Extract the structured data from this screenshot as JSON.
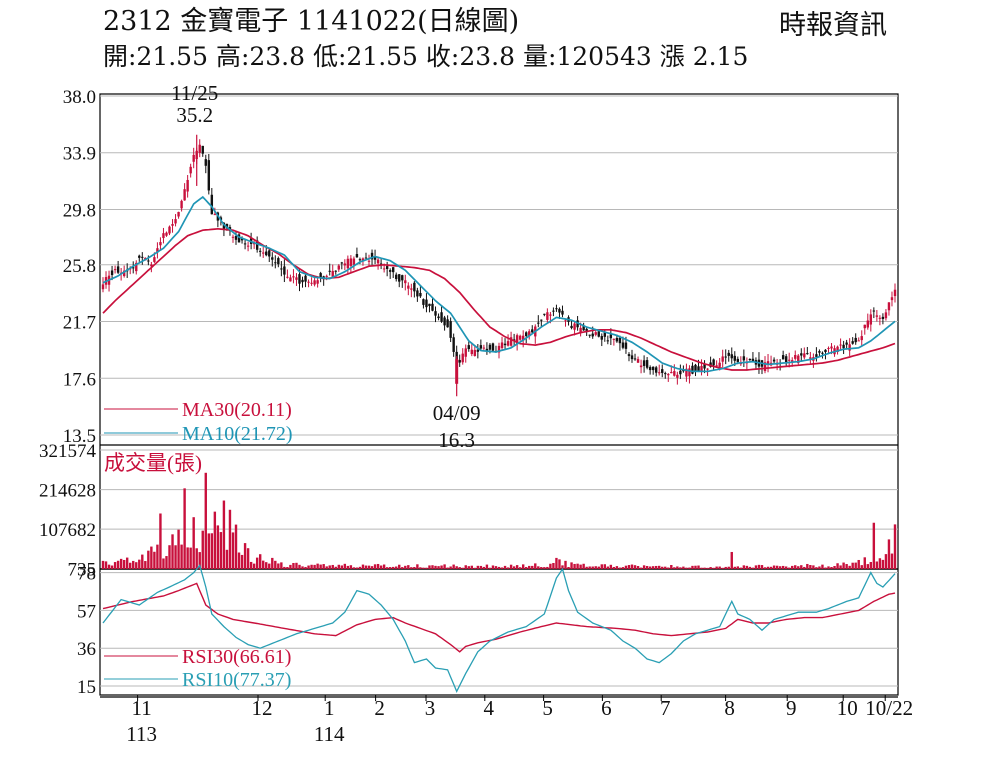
{
  "header": {
    "title": "2312  金寶電子 1141022(日線圖)",
    "ohlc": "開:21.55 高:23.8 低:21.55 收:23.8 量:120543 漲 2.15",
    "source": "時報資訊"
  },
  "colors": {
    "up": "#c8103c",
    "down": "#111111",
    "ma30": "#c8103c",
    "ma10": "#1f95b5",
    "rsi30": "#c8103c",
    "rsi10": "#2a9fb4",
    "volume": "#c8103c",
    "grid": "#b8b8b8",
    "axis": "#000000"
  },
  "chart_data": [
    {
      "type": "candlestick",
      "ylim": [
        13.5,
        38.0
      ],
      "y_ticks": [
        "38.0",
        "33.9",
        "29.8",
        "25.8",
        "21.7",
        "17.6",
        "13.5"
      ],
      "y_tick_values": [
        38.0,
        33.9,
        29.8,
        25.8,
        21.7,
        17.6,
        13.5
      ],
      "grid": true,
      "annotations": [
        {
          "date": "11/25",
          "value": "35.2",
          "label_date": "11/25",
          "label_value": "35.2"
        },
        {
          "date": "04/09",
          "value": "16.3",
          "label_date": "04/09",
          "label_value": "16.3"
        }
      ],
      "legend": [
        {
          "name": "MA30(20.11)",
          "color_key": "ma30"
        },
        {
          "name": "MA10(21.72)",
          "color_key": "ma10"
        }
      ],
      "ma30_anchors": [
        [
          0,
          22.3
        ],
        [
          4,
          23.2
        ],
        [
          8,
          24.0
        ],
        [
          12,
          24.8
        ],
        [
          16,
          25.6
        ],
        [
          20,
          26.4
        ],
        [
          24,
          27.2
        ],
        [
          28,
          27.9
        ],
        [
          33,
          28.3
        ],
        [
          38,
          28.4
        ],
        [
          43,
          28.3
        ],
        [
          48,
          27.9
        ],
        [
          53,
          27.2
        ],
        [
          58,
          26.6
        ],
        [
          63,
          25.8
        ],
        [
          68,
          25.1
        ],
        [
          73,
          24.8
        ],
        [
          78,
          24.9
        ],
        [
          83,
          25.3
        ],
        [
          88,
          25.7
        ],
        [
          93,
          25.8
        ],
        [
          98,
          25.7
        ],
        [
          103,
          25.6
        ],
        [
          108,
          25.4
        ],
        [
          113,
          24.8
        ],
        [
          118,
          23.8
        ],
        [
          123,
          22.5
        ],
        [
          128,
          21.3
        ],
        [
          133,
          20.6
        ],
        [
          138,
          20.1
        ],
        [
          143,
          20.0
        ],
        [
          148,
          20.2
        ],
        [
          153,
          20.6
        ],
        [
          158,
          20.9
        ],
        [
          163,
          21.1
        ],
        [
          168,
          21.1
        ],
        [
          173,
          20.9
        ],
        [
          178,
          20.5
        ],
        [
          183,
          20.0
        ],
        [
          188,
          19.5
        ],
        [
          193,
          19.1
        ],
        [
          198,
          18.7
        ],
        [
          203,
          18.4
        ],
        [
          208,
          18.2
        ],
        [
          213,
          18.2
        ],
        [
          218,
          18.3
        ],
        [
          223,
          18.4
        ],
        [
          228,
          18.5
        ],
        [
          233,
          18.6
        ],
        [
          238,
          18.7
        ],
        [
          243,
          18.9
        ],
        [
          248,
          19.2
        ],
        [
          253,
          19.5
        ],
        [
          258,
          19.8
        ],
        [
          262,
          20.11
        ]
      ],
      "ma10_anchors": [
        [
          0,
          24.5
        ],
        [
          5,
          25.0
        ],
        [
          10,
          25.7
        ],
        [
          15,
          26.3
        ],
        [
          20,
          27.0
        ],
        [
          25,
          28.2
        ],
        [
          30,
          30.2
        ],
        [
          33,
          30.7
        ],
        [
          36,
          30.0
        ],
        [
          40,
          28.7
        ],
        [
          45,
          27.8
        ],
        [
          50,
          27.4
        ],
        [
          55,
          27.0
        ],
        [
          60,
          26.5
        ],
        [
          65,
          25.3
        ],
        [
          70,
          24.9
        ],
        [
          75,
          24.8
        ],
        [
          80,
          25.3
        ],
        [
          85,
          26.0
        ],
        [
          90,
          26.4
        ],
        [
          95,
          26.1
        ],
        [
          100,
          25.4
        ],
        [
          105,
          24.3
        ],
        [
          110,
          23.2
        ],
        [
          115,
          22.3
        ],
        [
          118,
          21.3
        ],
        [
          121,
          20.3
        ],
        [
          125,
          19.6
        ],
        [
          130,
          19.5
        ],
        [
          135,
          19.8
        ],
        [
          140,
          20.5
        ],
        [
          145,
          21.3
        ],
        [
          150,
          22.0
        ],
        [
          155,
          21.8
        ],
        [
          160,
          21.3
        ],
        [
          165,
          21.0
        ],
        [
          170,
          20.7
        ],
        [
          175,
          20.2
        ],
        [
          180,
          19.5
        ],
        [
          185,
          18.7
        ],
        [
          190,
          18.3
        ],
        [
          195,
          18.1
        ],
        [
          200,
          18.1
        ],
        [
          205,
          18.3
        ],
        [
          210,
          18.7
        ],
        [
          215,
          18.8
        ],
        [
          220,
          18.6
        ],
        [
          225,
          18.7
        ],
        [
          230,
          18.8
        ],
        [
          235,
          19.0
        ],
        [
          240,
          19.4
        ],
        [
          245,
          19.7
        ],
        [
          250,
          19.8
        ],
        [
          254,
          20.3
        ],
        [
          258,
          21.0
        ],
        [
          262,
          21.72
        ]
      ],
      "price_anchors": [
        [
          0,
          24.6
        ],
        [
          4,
          25.4
        ],
        [
          8,
          25.2
        ],
        [
          12,
          26.3
        ],
        [
          16,
          26.0
        ],
        [
          20,
          27.9
        ],
        [
          24,
          29.0
        ],
        [
          27,
          31.2
        ],
        [
          30,
          33.8
        ],
        [
          32,
          34.6
        ],
        [
          34,
          33.0
        ],
        [
          36,
          29.5
        ],
        [
          40,
          28.6
        ],
        [
          45,
          27.6
        ],
        [
          50,
          27.2
        ],
        [
          54,
          26.6
        ],
        [
          58,
          25.8
        ],
        [
          62,
          24.8
        ],
        [
          66,
          24.6
        ],
        [
          70,
          24.7
        ],
        [
          75,
          25.2
        ],
        [
          80,
          26.0
        ],
        [
          85,
          26.3
        ],
        [
          90,
          26.3
        ],
        [
          94,
          25.5
        ],
        [
          98,
          24.8
        ],
        [
          102,
          24.2
        ],
        [
          106,
          23.0
        ],
        [
          110,
          22.3
        ],
        [
          114,
          21.3
        ],
        [
          117,
          18.6
        ],
        [
          120,
          19.6
        ],
        [
          124,
          19.7
        ],
        [
          130,
          19.7
        ],
        [
          136,
          20.5
        ],
        [
          142,
          21.0
        ],
        [
          146,
          22.2
        ],
        [
          150,
          22.5
        ],
        [
          154,
          21.5
        ],
        [
          158,
          21.2
        ],
        [
          162,
          20.8
        ],
        [
          166,
          20.5
        ],
        [
          170,
          20.2
        ],
        [
          174,
          19.4
        ],
        [
          178,
          18.6
        ],
        [
          182,
          18.3
        ],
        [
          186,
          18.0
        ],
        [
          190,
          18.0
        ],
        [
          194,
          18.1
        ],
        [
          198,
          18.3
        ],
        [
          202,
          18.6
        ],
        [
          206,
          19.2
        ],
        [
          210,
          18.8
        ],
        [
          214,
          18.8
        ],
        [
          218,
          18.5
        ],
        [
          222,
          18.8
        ],
        [
          226,
          19.0
        ],
        [
          230,
          19.2
        ],
        [
          234,
          19.3
        ],
        [
          238,
          19.4
        ],
        [
          242,
          19.8
        ],
        [
          246,
          20.0
        ],
        [
          250,
          20.3
        ],
        [
          254,
          22.4
        ],
        [
          258,
          22.0
        ],
        [
          262,
          23.8
        ]
      ]
    },
    {
      "type": "bar",
      "title": "成交量(張)",
      "ylim": [
        0,
        321574
      ],
      "y_ticks": [
        "321574",
        "214628",
        "107682",
        "735"
      ],
      "y_tick_values": [
        321574,
        214628,
        107682,
        735
      ],
      "last_value": 120543,
      "spikes": [
        [
          19,
          150000
        ],
        [
          27,
          218000
        ],
        [
          30,
          140000
        ],
        [
          34,
          260000
        ],
        [
          37,
          155000
        ],
        [
          40,
          185000
        ],
        [
          42,
          160000
        ],
        [
          44,
          120000
        ],
        [
          47,
          70000
        ],
        [
          52,
          40000
        ],
        [
          56,
          30000
        ],
        [
          150,
          30000
        ],
        [
          151,
          26000
        ],
        [
          153,
          22000
        ],
        [
          208,
          46000
        ],
        [
          255,
          125000
        ],
        [
          260,
          80000
        ],
        [
          262,
          120543
        ]
      ],
      "base_anchors": [
        [
          0,
          18000
        ],
        [
          10,
          22000
        ],
        [
          20,
          60000
        ],
        [
          30,
          100000
        ],
        [
          40,
          90000
        ],
        [
          50,
          25000
        ],
        [
          60,
          12000
        ],
        [
          80,
          10000
        ],
        [
          100,
          9000
        ],
        [
          120,
          8000
        ],
        [
          140,
          9000
        ],
        [
          150,
          15000
        ],
        [
          160,
          9000
        ],
        [
          200,
          7000
        ],
        [
          220,
          8000
        ],
        [
          240,
          10000
        ],
        [
          255,
          25000
        ],
        [
          262,
          30000
        ]
      ]
    },
    {
      "type": "line",
      "ylim": [
        10,
        80
      ],
      "y_ticks": [
        "78",
        "57",
        "36",
        "15"
      ],
      "y_tick_values": [
        78,
        57,
        36,
        15
      ],
      "legend": [
        {
          "name": "RSI30(66.61)",
          "color_key": "rsi30"
        },
        {
          "name": "RSI10(77.37)",
          "color_key": "rsi10"
        }
      ],
      "rsi30_anchors": [
        [
          0,
          58
        ],
        [
          10,
          62
        ],
        [
          20,
          65
        ],
        [
          25,
          68
        ],
        [
          28,
          70
        ],
        [
          31,
          72
        ],
        [
          34,
          60
        ],
        [
          38,
          55
        ],
        [
          43,
          52
        ],
        [
          50,
          50
        ],
        [
          60,
          47
        ],
        [
          70,
          44
        ],
        [
          77,
          43
        ],
        [
          84,
          49
        ],
        [
          90,
          52
        ],
        [
          96,
          53
        ],
        [
          100,
          50
        ],
        [
          105,
          47
        ],
        [
          110,
          44
        ],
        [
          115,
          38
        ],
        [
          118,
          34
        ],
        [
          120,
          37
        ],
        [
          124,
          39
        ],
        [
          130,
          41
        ],
        [
          138,
          45
        ],
        [
          145,
          48
        ],
        [
          150,
          50
        ],
        [
          155,
          49
        ],
        [
          160,
          48
        ],
        [
          170,
          47
        ],
        [
          176,
          46
        ],
        [
          182,
          44
        ],
        [
          188,
          43
        ],
        [
          194,
          44
        ],
        [
          200,
          45
        ],
        [
          206,
          47
        ],
        [
          210,
          52
        ],
        [
          215,
          50
        ],
        [
          220,
          50
        ],
        [
          226,
          52
        ],
        [
          232,
          53
        ],
        [
          238,
          53
        ],
        [
          244,
          55
        ],
        [
          250,
          57
        ],
        [
          255,
          62
        ],
        [
          260,
          66
        ],
        [
          262,
          66.61
        ]
      ],
      "rsi10_anchors": [
        [
          0,
          50
        ],
        [
          6,
          63
        ],
        [
          12,
          60
        ],
        [
          18,
          67
        ],
        [
          22,
          70
        ],
        [
          27,
          74
        ],
        [
          30,
          78
        ],
        [
          32,
          82
        ],
        [
          34,
          70
        ],
        [
          36,
          55
        ],
        [
          40,
          48
        ],
        [
          44,
          42
        ],
        [
          48,
          38
        ],
        [
          52,
          36
        ],
        [
          58,
          40
        ],
        [
          64,
          44
        ],
        [
          70,
          47
        ],
        [
          76,
          50
        ],
        [
          80,
          56
        ],
        [
          84,
          68
        ],
        [
          88,
          66
        ],
        [
          92,
          60
        ],
        [
          96,
          52
        ],
        [
          100,
          40
        ],
        [
          103,
          28
        ],
        [
          107,
          30
        ],
        [
          110,
          25
        ],
        [
          114,
          24
        ],
        [
          117,
          12
        ],
        [
          120,
          22
        ],
        [
          124,
          34
        ],
        [
          128,
          40
        ],
        [
          134,
          45
        ],
        [
          140,
          48
        ],
        [
          146,
          55
        ],
        [
          150,
          75
        ],
        [
          152,
          80
        ],
        [
          154,
          68
        ],
        [
          157,
          56
        ],
        [
          162,
          50
        ],
        [
          168,
          46
        ],
        [
          172,
          40
        ],
        [
          176,
          36
        ],
        [
          180,
          30
        ],
        [
          184,
          28
        ],
        [
          188,
          33
        ],
        [
          192,
          40
        ],
        [
          196,
          44
        ],
        [
          200,
          46
        ],
        [
          204,
          48
        ],
        [
          208,
          62
        ],
        [
          210,
          55
        ],
        [
          214,
          52
        ],
        [
          218,
          46
        ],
        [
          222,
          52
        ],
        [
          226,
          54
        ],
        [
          230,
          56
        ],
        [
          236,
          56
        ],
        [
          240,
          58
        ],
        [
          246,
          62
        ],
        [
          250,
          64
        ],
        [
          254,
          78
        ],
        [
          256,
          72
        ],
        [
          258,
          70
        ],
        [
          262,
          77.37
        ]
      ]
    }
  ],
  "x_axis": {
    "n_days": 263,
    "ticks": [
      {
        "label": "11",
        "sub": "113",
        "day": 12
      },
      {
        "label": "12",
        "sub": "",
        "day": 55
      },
      {
        "label": "1",
        "sub": "114",
        "day": 79
      },
      {
        "label": "2",
        "sub": "",
        "day": 97
      },
      {
        "label": "3",
        "sub": "",
        "day": 115
      },
      {
        "label": "4",
        "sub": "",
        "day": 136
      },
      {
        "label": "5",
        "sub": "",
        "day": 157
      },
      {
        "label": "6",
        "sub": "",
        "day": 178
      },
      {
        "label": "7",
        "sub": "",
        "day": 199
      },
      {
        "label": "8",
        "sub": "",
        "day": 222
      },
      {
        "label": "9",
        "sub": "",
        "day": 244
      },
      {
        "label": "10",
        "sub": "",
        "day": 264
      },
      {
        "label": "10/22",
        "sub": "",
        "day": 279
      }
    ]
  }
}
